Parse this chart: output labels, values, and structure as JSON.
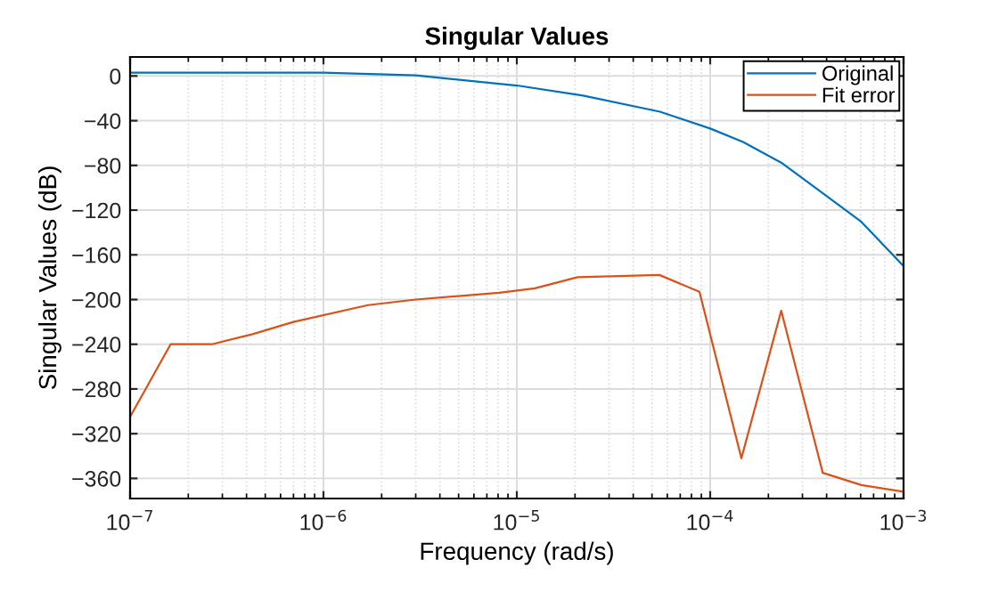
{
  "chart_data": {
    "type": "line",
    "title": "Singular Values",
    "xlabel": "Frequency (rad/s)",
    "ylabel": "Singular Values (dB)",
    "log": "x",
    "grid": true,
    "legend": "top right",
    "xlim": [
      1e-07,
      0.001
    ],
    "xticks": [
      {
        "value": 1e-07,
        "label": "10$^{−7}$"
      },
      {
        "value": 1e-06,
        "label": "10$^{−6}$"
      },
      {
        "value": 1e-05,
        "label": "10$^{−5}$"
      },
      {
        "value": 0.0001,
        "label": "10$^{−4}$"
      },
      {
        "value": 0.001,
        "label": "10$^{−3}$"
      }
    ],
    "ylim": [
      -378,
      17
    ],
    "yticks": [
      0,
      -40,
      -80,
      -120,
      -160,
      -200,
      -240,
      -280,
      -320,
      -360
    ],
    "series": [
      {
        "name": "Original",
        "color": "#0072bd",
        "x": [
          1e-07,
          1e-06,
          3e-06,
          1e-05,
          2.2e-05,
          5.5e-05,
          0.0001,
          0.000148,
          0.000233,
          0.00036,
          0.000605,
          0.001
        ],
        "values": [
          3,
          3,
          0.5,
          -8.5,
          -17.5,
          -32,
          -47,
          -59,
          -77.5,
          -101.5,
          -130.5,
          -170
        ]
      },
      {
        "name": "Fit error",
        "color": "#d95319",
        "x": [
          1e-07,
          1.62e-07,
          2.65e-07,
          4.3e-07,
          7e-07,
          1.7e-06,
          3e-06,
          8.1e-06,
          1.24e-05,
          2.06e-05,
          5.46e-05,
          8.8e-05,
          0.000145,
          0.000233,
          0.000382,
          0.000605,
          0.001
        ],
        "values": [
          -305,
          -240,
          -240,
          -231,
          -220,
          -205,
          -200,
          -194,
          -190,
          -180,
          -178,
          -193,
          -342,
          -210,
          -355,
          -366,
          -372
        ]
      }
    ]
  }
}
